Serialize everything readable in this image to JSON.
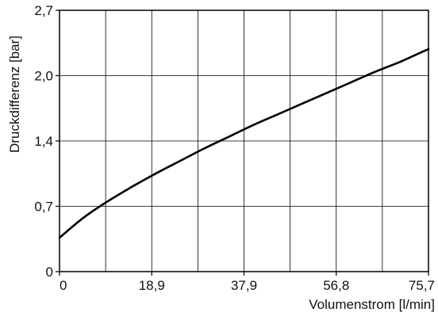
{
  "chart_data": {
    "type": "line",
    "title": "",
    "xlabel": "Volumenstrom [l/min]",
    "ylabel": "Druckdifferenz [bar]",
    "xlim": [
      0,
      75.7
    ],
    "ylim": [
      0,
      2.7
    ],
    "grid": true,
    "x_ticks": [
      "0",
      "18,9",
      "37,9",
      "56,8",
      "75,7"
    ],
    "y_ticks": [
      "0",
      "0,7",
      "1,4",
      "2,0",
      "2,7"
    ],
    "series": [
      {
        "x": [
          0,
          5,
          10,
          15,
          20,
          25,
          30,
          35,
          40,
          45,
          50,
          55,
          60,
          65,
          70,
          75.7
        ],
        "y": [
          0.35,
          0.56,
          0.73,
          0.88,
          1.02,
          1.15,
          1.28,
          1.4,
          1.52,
          1.63,
          1.74,
          1.85,
          1.96,
          2.07,
          2.17,
          2.3
        ]
      }
    ]
  }
}
